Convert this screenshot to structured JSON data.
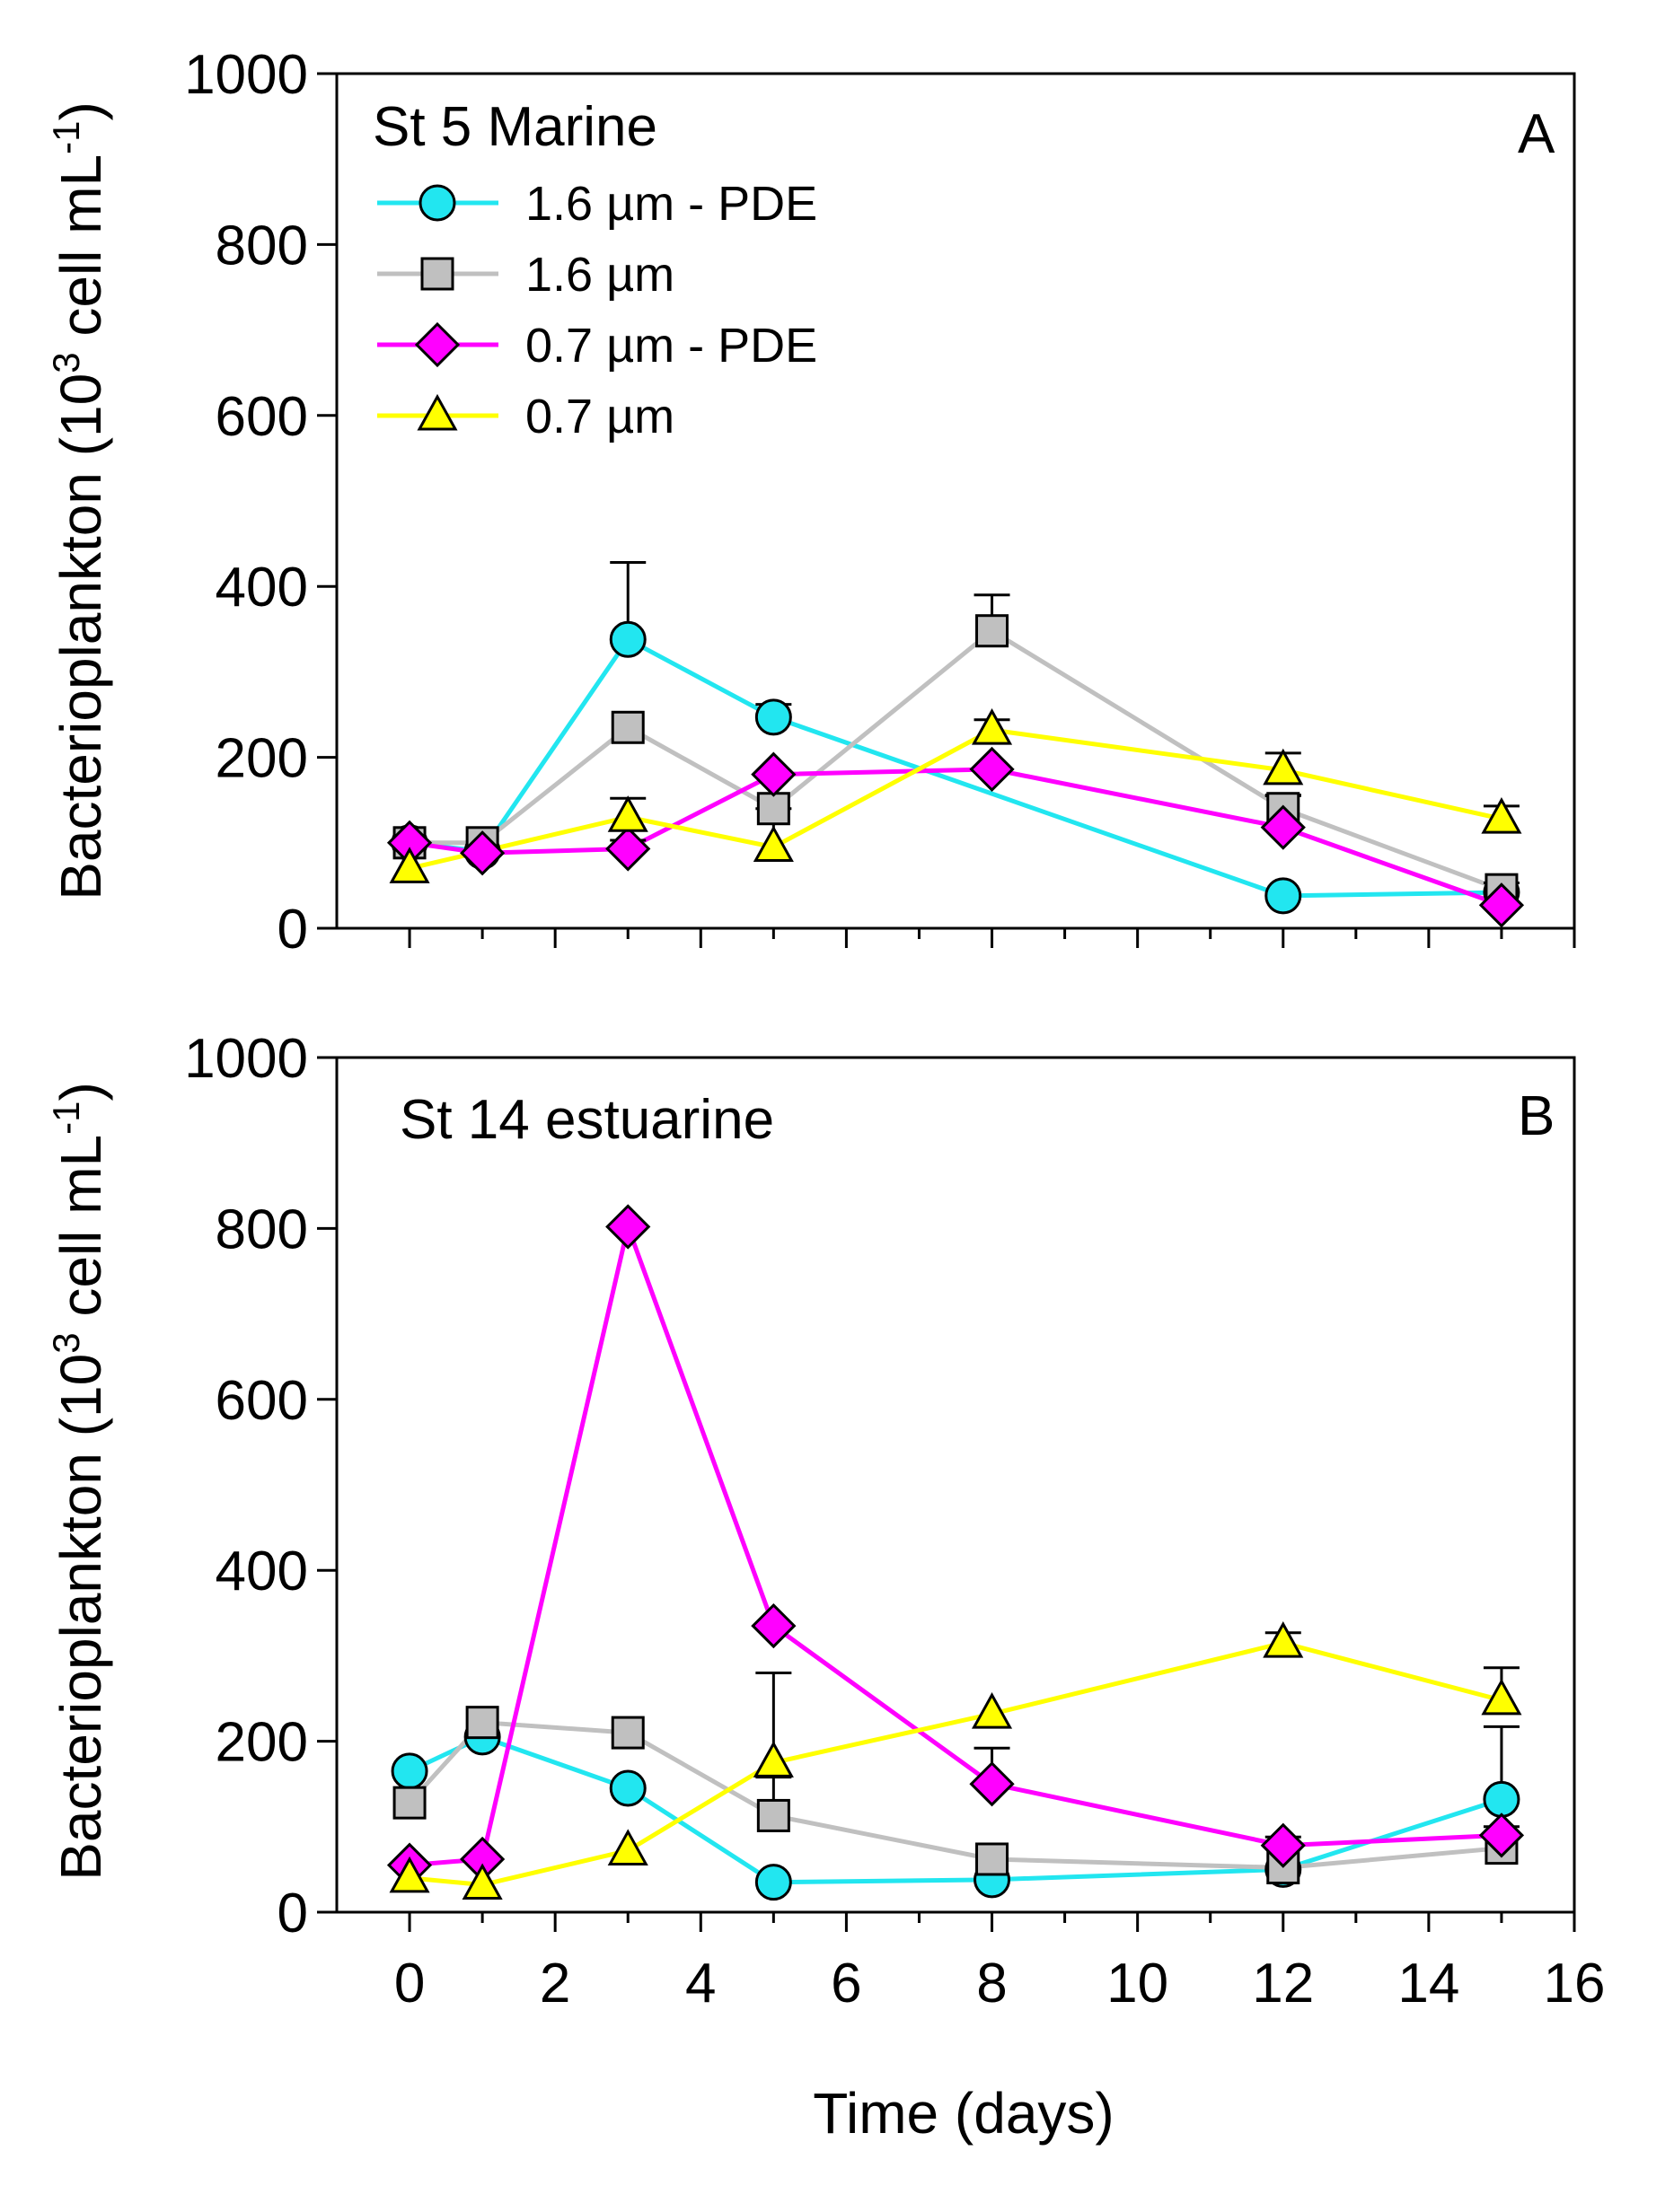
{
  "colors": {
    "pde16": "#22e6f0",
    "f16": "#c0c0c0",
    "pde07": "#ff00ff",
    "f07": "#ffff00"
  },
  "chart_data": [
    {
      "type": "line",
      "panel": "A",
      "title": "St 5 Marine",
      "xlabel": "Time (days)",
      "ylabel": "Bacterioplankton (10³ cell mL⁻¹)",
      "ylabel_main": "Bacterioplankton (10",
      "ylabel_sup1": "3",
      "ylabel_mid": " cell mL",
      "ylabel_sup2": "-1",
      "ylabel_end": ")",
      "xlim": [
        -1,
        16
      ],
      "ylim": [
        0,
        1000
      ],
      "yticks": [
        "0",
        "200",
        "400",
        "600",
        "800",
        "1000"
      ],
      "legend_position": "top-left",
      "series": [
        {
          "name": "1.6 µm - PDE",
          "marker": "circle",
          "color_key": "pde16",
          "x": [
            0,
            1,
            3,
            5,
            12,
            15
          ],
          "values": [
            100,
            90,
            338,
            247,
            38,
            42
          ],
          "errors": [
            0,
            0,
            90,
            15,
            0,
            0
          ]
        },
        {
          "name": "1.6 µm",
          "marker": "square",
          "color_key": "f16",
          "x": [
            0,
            1,
            3,
            5,
            8,
            12,
            15
          ],
          "values": [
            100,
            100,
            235,
            140,
            348,
            140,
            45
          ],
          "errors": [
            0,
            0,
            0,
            0,
            42,
            15,
            8
          ]
        },
        {
          "name": "0.7 µm - PDE",
          "marker": "diamond",
          "color_key": "pde07",
          "x": [
            0,
            1,
            3,
            5,
            8,
            12,
            15
          ],
          "values": [
            100,
            88,
            93,
            180,
            186,
            118,
            27
          ],
          "errors": [
            0,
            0,
            10,
            0,
            0,
            38,
            0
          ]
        },
        {
          "name": "0.7 µm",
          "marker": "triangle",
          "color_key": "f07",
          "x": [
            0,
            3,
            5,
            8,
            12,
            15
          ],
          "values": [
            70,
            130,
            95,
            232,
            185,
            128
          ],
          "errors": [
            0,
            22,
            45,
            12,
            20,
            15
          ]
        }
      ]
    },
    {
      "type": "line",
      "panel": "B",
      "title": "St 14 estuarine",
      "xlabel": "Time (days)",
      "ylabel": "Bacterioplankton (10³ cell mL⁻¹)",
      "ylabel_main": "Bacterioplankton (10",
      "ylabel_sup1": "3",
      "ylabel_mid": " cell mL",
      "ylabel_sup2": "-1",
      "ylabel_end": ")",
      "xlim": [
        -1,
        16
      ],
      "ylim": [
        0,
        1000
      ],
      "xticks": [
        "0",
        "2",
        "4",
        "6",
        "8",
        "10",
        "12",
        "14",
        "16"
      ],
      "yticks": [
        "0",
        "200",
        "400",
        "600",
        "800",
        "1000"
      ],
      "series": [
        {
          "name": "1.6 µm - PDE",
          "marker": "circle",
          "color_key": "pde16",
          "x": [
            0,
            1,
            3,
            5,
            8,
            12,
            15
          ],
          "values": [
            165,
            205,
            145,
            35,
            38,
            50,
            132
          ],
          "errors": [
            0,
            0,
            0,
            0,
            0,
            0,
            85
          ]
        },
        {
          "name": "1.6 µm",
          "marker": "square",
          "color_key": "f16",
          "x": [
            0,
            1,
            3,
            5,
            8,
            12,
            15
          ],
          "values": [
            128,
            222,
            210,
            113,
            62,
            52,
            75
          ],
          "errors": [
            0,
            0,
            0,
            45,
            0,
            0,
            25
          ]
        },
        {
          "name": "0.7 µm - PDE",
          "marker": "diamond",
          "color_key": "pde07",
          "x": [
            0,
            1,
            3,
            5,
            8,
            12,
            15
          ],
          "values": [
            55,
            62,
            802,
            335,
            150,
            78,
            90
          ],
          "errors": [
            0,
            0,
            0,
            0,
            42,
            10,
            0
          ]
        },
        {
          "name": "0.7 µm",
          "marker": "triangle",
          "color_key": "f07",
          "x": [
            0,
            1,
            3,
            5,
            8,
            12,
            15
          ],
          "values": [
            40,
            32,
            72,
            175,
            232,
            315,
            248
          ],
          "errors": [
            0,
            0,
            0,
            105,
            0,
            12,
            38
          ]
        }
      ]
    }
  ]
}
